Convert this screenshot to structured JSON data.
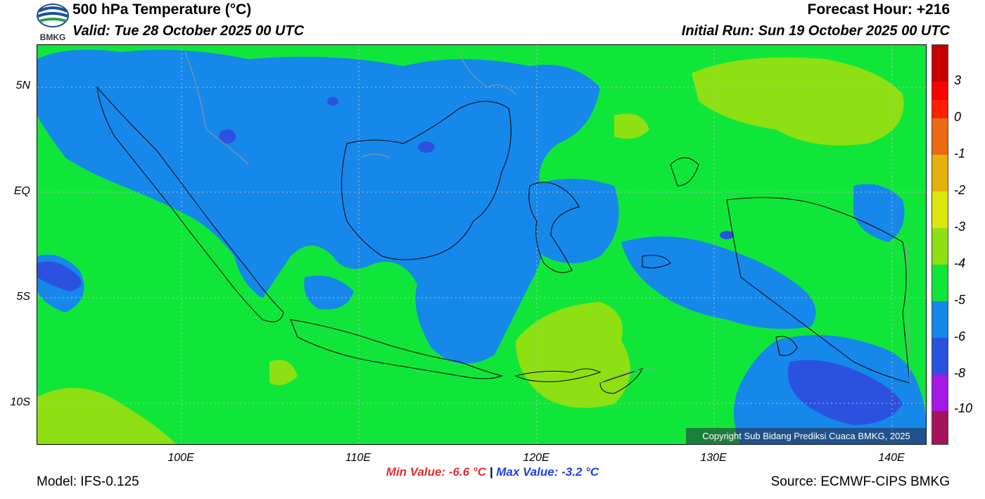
{
  "header": {
    "title": "500 hPa Temperature (°C)",
    "valid": "Valid: Tue 28 October 2025 00 UTC",
    "forecast_hour": "Forecast Hour: +216",
    "initial_run": "Initial Run: Sun 19 October 2025 00 UTC",
    "logo_text": "BMKG"
  },
  "map": {
    "y_labels": [
      "5N",
      "EQ",
      "5S",
      "10S"
    ],
    "x_labels": [
      "100E",
      "110E",
      "120E",
      "130E",
      "140E"
    ],
    "lat_range": [
      -12,
      7
    ],
    "lon_range": [
      92,
      142
    ],
    "copyright": "Copyright Sub Bidang Prediksi Cuaca BMKG, 2025"
  },
  "colorbar": {
    "labels": [
      "3",
      "0",
      "-1",
      "-2",
      "-3",
      "-4",
      "-5",
      "-6",
      "-8",
      "-10"
    ],
    "colors": [
      "#c40000",
      "#ff0000",
      "#ff1f00",
      "#ec6a12",
      "#e6b10a",
      "#dde60c",
      "#8ee012",
      "#10e63a",
      "#1588ea",
      "#2a52df",
      "#a418e6",
      "#a4135a"
    ],
    "dominant": {
      "minus4_to_minus5": "#10e63a",
      "minus5_to_minus6": "#1588ea",
      "minus3_to_minus4": "#8ee012",
      "minus6_to_minus8": "#2a52df"
    }
  },
  "stats": {
    "min": "Min Value: -6.6 °C",
    "sep": "|",
    "max": "Max Value: -3.2 °C"
  },
  "footer": {
    "model": "Model: IFS-0.125",
    "source": "Source: ECMWF-CIPS BMKG"
  }
}
